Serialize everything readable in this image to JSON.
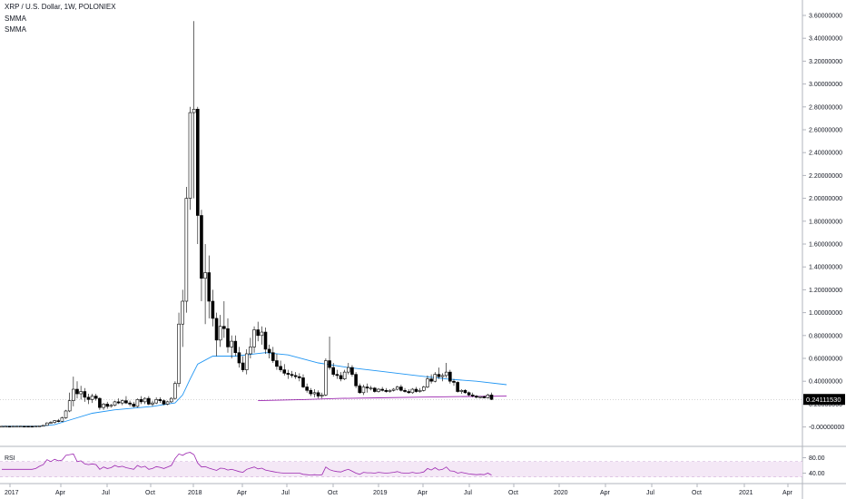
{
  "chart_data": {
    "type": "candlestick",
    "title": "XRP / U.S. Dollar, 1W, POLONIEX",
    "indicators": [
      "SMMA",
      "SMMA"
    ],
    "y_axis": {
      "ticks": [
        "3.60000000",
        "3.40000000",
        "3.20000000",
        "3.00000000",
        "2.80000000",
        "2.60000000",
        "2.40000000",
        "2.20000000",
        "2.00000000",
        "1.80000000",
        "1.60000000",
        "1.40000000",
        "1.20000000",
        "1.00000000",
        "0.80000000",
        "0.60000000",
        "0.40000000",
        "0.20000000",
        "-0.00000000"
      ],
      "range": [
        -0.05,
        3.72
      ]
    },
    "x_axis": {
      "labels": [
        "2017",
        "Apr",
        "Jul",
        "Oct",
        "2018",
        "Apr",
        "Jul",
        "Oct",
        "2019",
        "Apr",
        "Jul",
        "Oct",
        "2020",
        "Apr",
        "Jul",
        "Oct",
        "2021",
        "Apr"
      ]
    },
    "last_price": "0.24111530",
    "last_price_value": 0.2411,
    "candle_colors": {
      "up": "#ffffff",
      "down": "#000000",
      "outline": "#000000",
      "wick": "#000000"
    },
    "ohlc": [
      [
        0.0063,
        0.0066,
        0.0062,
        0.0064
      ],
      [
        0.0064,
        0.007,
        0.0061,
        0.0067
      ],
      [
        0.0067,
        0.0072,
        0.0063,
        0.0065
      ],
      [
        0.0065,
        0.0069,
        0.0062,
        0.0066
      ],
      [
        0.0066,
        0.0071,
        0.0063,
        0.0068
      ],
      [
        0.0068,
        0.0075,
        0.0065,
        0.007
      ],
      [
        0.007,
        0.0074,
        0.0066,
        0.0069
      ],
      [
        0.0069,
        0.0073,
        0.0065,
        0.0068
      ],
      [
        0.0068,
        0.0072,
        0.0064,
        0.0067
      ],
      [
        0.0067,
        0.0075,
        0.0065,
        0.0072
      ],
      [
        0.0072,
        0.011,
        0.007,
        0.01
      ],
      [
        0.01,
        0.015,
        0.009,
        0.014
      ],
      [
        0.014,
        0.04,
        0.012,
        0.035
      ],
      [
        0.035,
        0.05,
        0.028,
        0.04
      ],
      [
        0.04,
        0.06,
        0.03,
        0.055
      ],
      [
        0.055,
        0.07,
        0.04,
        0.05
      ],
      [
        0.05,
        0.09,
        0.045,
        0.08
      ],
      [
        0.08,
        0.15,
        0.07,
        0.14
      ],
      [
        0.14,
        0.3,
        0.13,
        0.23
      ],
      [
        0.23,
        0.44,
        0.18,
        0.33
      ],
      [
        0.33,
        0.4,
        0.25,
        0.29
      ],
      [
        0.29,
        0.36,
        0.24,
        0.31
      ],
      [
        0.31,
        0.34,
        0.22,
        0.26
      ],
      [
        0.26,
        0.29,
        0.2,
        0.24
      ],
      [
        0.24,
        0.29,
        0.21,
        0.27
      ],
      [
        0.27,
        0.29,
        0.23,
        0.25
      ],
      [
        0.25,
        0.26,
        0.15,
        0.17
      ],
      [
        0.17,
        0.21,
        0.15,
        0.2
      ],
      [
        0.2,
        0.22,
        0.16,
        0.18
      ],
      [
        0.18,
        0.2,
        0.17,
        0.19
      ],
      [
        0.19,
        0.23,
        0.18,
        0.22
      ],
      [
        0.22,
        0.25,
        0.2,
        0.21
      ],
      [
        0.21,
        0.24,
        0.19,
        0.23
      ],
      [
        0.23,
        0.27,
        0.2,
        0.21
      ],
      [
        0.21,
        0.23,
        0.18,
        0.2
      ],
      [
        0.2,
        0.22,
        0.17,
        0.18
      ],
      [
        0.18,
        0.25,
        0.17,
        0.24
      ],
      [
        0.24,
        0.27,
        0.2,
        0.22
      ],
      [
        0.22,
        0.26,
        0.2,
        0.25
      ],
      [
        0.25,
        0.27,
        0.19,
        0.2
      ],
      [
        0.2,
        0.23,
        0.18,
        0.21
      ],
      [
        0.21,
        0.26,
        0.2,
        0.24
      ],
      [
        0.24,
        0.26,
        0.21,
        0.23
      ],
      [
        0.23,
        0.24,
        0.19,
        0.2
      ],
      [
        0.2,
        0.23,
        0.19,
        0.22
      ],
      [
        0.22,
        0.26,
        0.21,
        0.25
      ],
      [
        0.25,
        0.4,
        0.24,
        0.38
      ],
      [
        0.38,
        1.0,
        0.35,
        0.9
      ],
      [
        0.9,
        1.2,
        0.7,
        1.1
      ],
      [
        1.1,
        2.1,
        1.0,
        2.0
      ],
      [
        2.0,
        2.8,
        1.9,
        2.75
      ],
      [
        2.75,
        3.55,
        2.0,
        2.78
      ],
      [
        2.78,
        2.8,
        1.6,
        1.85
      ],
      [
        1.85,
        1.9,
        1.1,
        1.3
      ],
      [
        1.3,
        1.6,
        0.9,
        1.35
      ],
      [
        1.35,
        1.5,
        0.95,
        1.1
      ],
      [
        1.1,
        1.2,
        0.88,
        0.95
      ],
      [
        0.95,
        1.0,
        0.62,
        0.76
      ],
      [
        0.76,
        0.98,
        0.7,
        0.88
      ],
      [
        0.88,
        1.1,
        0.78,
        0.86
      ],
      [
        0.86,
        0.95,
        0.65,
        0.7
      ],
      [
        0.7,
        0.8,
        0.6,
        0.75
      ],
      [
        0.75,
        0.8,
        0.62,
        0.65
      ],
      [
        0.65,
        0.7,
        0.52,
        0.56
      ],
      [
        0.56,
        0.62,
        0.48,
        0.5
      ],
      [
        0.5,
        0.68,
        0.46,
        0.64
      ],
      [
        0.64,
        0.78,
        0.6,
        0.7
      ],
      [
        0.7,
        0.88,
        0.65,
        0.85
      ],
      [
        0.85,
        0.92,
        0.75,
        0.8
      ],
      [
        0.8,
        0.88,
        0.72,
        0.83
      ],
      [
        0.83,
        0.87,
        0.64,
        0.68
      ],
      [
        0.68,
        0.72,
        0.6,
        0.65
      ],
      [
        0.65,
        0.7,
        0.56,
        0.58
      ],
      [
        0.58,
        0.64,
        0.5,
        0.53
      ],
      [
        0.53,
        0.58,
        0.48,
        0.5
      ],
      [
        0.5,
        0.55,
        0.45,
        0.47
      ],
      [
        0.47,
        0.5,
        0.42,
        0.46
      ],
      [
        0.46,
        0.49,
        0.43,
        0.45
      ],
      [
        0.45,
        0.48,
        0.42,
        0.44
      ],
      [
        0.44,
        0.47,
        0.4,
        0.43
      ],
      [
        0.43,
        0.46,
        0.34,
        0.35
      ],
      [
        0.35,
        0.38,
        0.3,
        0.32
      ],
      [
        0.32,
        0.34,
        0.27,
        0.29
      ],
      [
        0.29,
        0.33,
        0.26,
        0.3
      ],
      [
        0.3,
        0.32,
        0.25,
        0.27
      ],
      [
        0.27,
        0.3,
        0.25,
        0.28
      ],
      [
        0.28,
        0.6,
        0.27,
        0.58
      ],
      [
        0.58,
        0.79,
        0.5,
        0.52
      ],
      [
        0.52,
        0.56,
        0.44,
        0.46
      ],
      [
        0.46,
        0.5,
        0.42,
        0.45
      ],
      [
        0.45,
        0.48,
        0.4,
        0.42
      ],
      [
        0.42,
        0.5,
        0.41,
        0.48
      ],
      [
        0.48,
        0.56,
        0.46,
        0.52
      ],
      [
        0.52,
        0.54,
        0.44,
        0.46
      ],
      [
        0.46,
        0.48,
        0.34,
        0.36
      ],
      [
        0.36,
        0.38,
        0.29,
        0.3
      ],
      [
        0.3,
        0.37,
        0.28,
        0.35
      ],
      [
        0.35,
        0.38,
        0.3,
        0.34
      ],
      [
        0.34,
        0.36,
        0.32,
        0.34
      ],
      [
        0.34,
        0.35,
        0.3,
        0.31
      ],
      [
        0.31,
        0.34,
        0.3,
        0.33
      ],
      [
        0.33,
        0.35,
        0.31,
        0.32
      ],
      [
        0.32,
        0.34,
        0.3,
        0.31
      ],
      [
        0.31,
        0.33,
        0.3,
        0.32
      ],
      [
        0.32,
        0.34,
        0.31,
        0.33
      ],
      [
        0.33,
        0.36,
        0.32,
        0.35
      ],
      [
        0.35,
        0.37,
        0.31,
        0.32
      ],
      [
        0.32,
        0.34,
        0.3,
        0.31
      ],
      [
        0.31,
        0.33,
        0.29,
        0.3
      ],
      [
        0.3,
        0.34,
        0.29,
        0.33
      ],
      [
        0.33,
        0.35,
        0.3,
        0.31
      ],
      [
        0.31,
        0.34,
        0.3,
        0.32
      ],
      [
        0.32,
        0.36,
        0.31,
        0.35
      ],
      [
        0.35,
        0.45,
        0.34,
        0.42
      ],
      [
        0.42,
        0.46,
        0.38,
        0.4
      ],
      [
        0.4,
        0.48,
        0.39,
        0.46
      ],
      [
        0.46,
        0.52,
        0.42,
        0.44
      ],
      [
        0.44,
        0.47,
        0.4,
        0.45
      ],
      [
        0.45,
        0.56,
        0.43,
        0.48
      ],
      [
        0.48,
        0.5,
        0.38,
        0.4
      ],
      [
        0.4,
        0.42,
        0.36,
        0.39
      ],
      [
        0.39,
        0.4,
        0.3,
        0.31
      ],
      [
        0.31,
        0.33,
        0.29,
        0.32
      ],
      [
        0.32,
        0.33,
        0.29,
        0.3
      ],
      [
        0.3,
        0.31,
        0.27,
        0.28
      ],
      [
        0.28,
        0.3,
        0.26,
        0.27
      ],
      [
        0.27,
        0.28,
        0.25,
        0.26
      ],
      [
        0.26,
        0.27,
        0.25,
        0.265
      ],
      [
        0.265,
        0.275,
        0.25,
        0.255
      ],
      [
        0.255,
        0.29,
        0.25,
        0.28
      ],
      [
        0.28,
        0.3,
        0.235,
        0.241
      ]
    ],
    "smma_1": {
      "name": "SMMA",
      "color": "#2196f3",
      "points": [
        [
          0,
          0.006
        ],
        [
          10,
          0.007
        ],
        [
          14,
          0.02
        ],
        [
          18,
          0.06
        ],
        [
          24,
          0.12
        ],
        [
          30,
          0.15
        ],
        [
          40,
          0.18
        ],
        [
          46,
          0.21
        ],
        [
          48,
          0.28
        ],
        [
          50,
          0.42
        ],
        [
          52,
          0.55
        ],
        [
          56,
          0.62
        ],
        [
          62,
          0.62
        ],
        [
          70,
          0.65
        ],
        [
          76,
          0.63
        ],
        [
          84,
          0.56
        ],
        [
          92,
          0.52
        ],
        [
          100,
          0.49
        ],
        [
          110,
          0.45
        ],
        [
          118,
          0.42
        ],
        [
          126,
          0.4
        ],
        [
          134,
          0.37
        ]
      ]
    },
    "smma_2": {
      "name": "SMMA",
      "color": "#9c27b0",
      "points": [
        [
          68,
          0.23
        ],
        [
          80,
          0.24
        ],
        [
          90,
          0.25
        ],
        [
          100,
          0.255
        ],
        [
          110,
          0.26
        ],
        [
          120,
          0.265
        ],
        [
          134,
          0.27
        ]
      ]
    },
    "rsi": {
      "label": "RSI",
      "ticks": [
        "80.00",
        "40.00"
      ],
      "range": [
        20,
        100
      ],
      "band": [
        30,
        70
      ],
      "color": "#9c27b0",
      "values": [
        50,
        50,
        50,
        50,
        50,
        50,
        50,
        50,
        50,
        52,
        58,
        62,
        75,
        70,
        76,
        72,
        74,
        86,
        88,
        90,
        70,
        72,
        64,
        62,
        64,
        62,
        50,
        56,
        52,
        54,
        60,
        56,
        58,
        54,
        52,
        50,
        60,
        55,
        58,
        50,
        52,
        57,
        55,
        52,
        56,
        60,
        78,
        90,
        86,
        92,
        94,
        88,
        66,
        56,
        57,
        53,
        50,
        47,
        53,
        52,
        48,
        50,
        47,
        44,
        42,
        50,
        53,
        56,
        51,
        53,
        48,
        46,
        44,
        42,
        41,
        40,
        40,
        40,
        40,
        40,
        37,
        36,
        35,
        36,
        35,
        36,
        56,
        49,
        46,
        44,
        43,
        47,
        50,
        45,
        40,
        37,
        42,
        41,
        41,
        40,
        42,
        41,
        40,
        41,
        42,
        44,
        41,
        40,
        40,
        42,
        40,
        41,
        43,
        52,
        48,
        54,
        48,
        50,
        56,
        46,
        45,
        40,
        42,
        40,
        38,
        37,
        36,
        37,
        36,
        40,
        35
      ]
    }
  }
}
